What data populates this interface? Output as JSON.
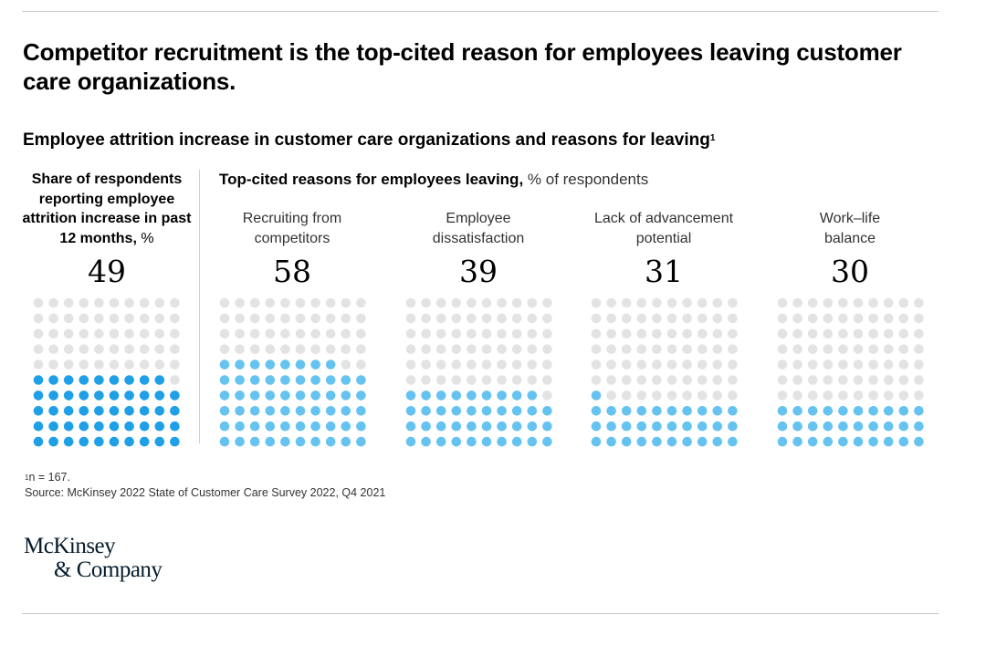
{
  "title": "Competitor recruitment is the top-cited reason for employees leaving customer care organizations.",
  "subtitle": "Employee attrition increase in customer care organizations and reasons for leaving",
  "subtitle_sup": "1",
  "left_header": {
    "bold": "Share of respondents reporting employee attrition increase in past 12 months,",
    "unit": " %"
  },
  "right_header": {
    "bold": "Top-cited reasons for employees leaving,",
    "unit": " % of respondents"
  },
  "colors": {
    "attrition": "#1e9fe6",
    "reasons": "#66c3ef",
    "empty": "#e3e3e3"
  },
  "chart_data": {
    "type": "waffle",
    "grid": {
      "rows": 10,
      "cols": 10,
      "fill_from": "bottom"
    },
    "unit": "% of respondents",
    "attrition": {
      "label": "Share of respondents reporting employee attrition increase in past 12 months",
      "value": 49
    },
    "reasons": [
      {
        "label_line1": "Recruiting from",
        "label_line2": "competitors",
        "value": 58
      },
      {
        "label_line1": "Employee",
        "label_line2": "dissatisfaction",
        "value": 39
      },
      {
        "label_line1": "Lack of advancement",
        "label_line2": "potential",
        "value": 31
      },
      {
        "label_line1": "Work–life",
        "label_line2": "balance",
        "value": 30
      }
    ]
  },
  "footnote": {
    "sup": "1",
    "text": "n = 167.",
    "source": "Source: McKinsey 2022 State of Customer Care Survey 2022, Q4 2021"
  },
  "logo": {
    "line1": "McKinsey",
    "line2": "& Company"
  }
}
